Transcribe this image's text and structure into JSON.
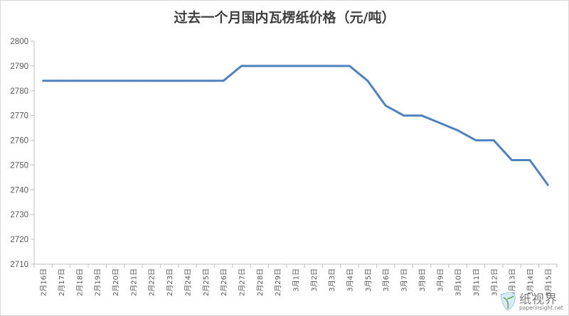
{
  "chart_data": {
    "type": "line",
    "title": "过去一个月国内瓦楞纸价格（元/吨）",
    "xlabel": "",
    "ylabel": "",
    "ylim": [
      2710,
      2800
    ],
    "yticks": [
      2710,
      2720,
      2730,
      2740,
      2750,
      2760,
      2770,
      2780,
      2790,
      2800
    ],
    "grid": false,
    "legend": "none",
    "series_color": "#4f81bd",
    "categories": [
      "2月16日",
      "2月17日",
      "2月18日",
      "2月19日",
      "2月20日",
      "2月21日",
      "2月22日",
      "2月23日",
      "2月24日",
      "2月25日",
      "2月26日",
      "2月27日",
      "2月28日",
      "2月29日",
      "3月1日",
      "3月2日",
      "3月3日",
      "3月4日",
      "3月5日",
      "3月6日",
      "3月7日",
      "3月8日",
      "3月9日",
      "3月10日",
      "3月11日",
      "3月12日",
      "3月13日",
      "3月14日",
      "3月15日"
    ],
    "series": [
      {
        "values": [
          2784,
          2784,
          2784,
          2784,
          2784,
          2784,
          2784,
          2784,
          2784,
          2784,
          2784,
          2790,
          2790,
          2790,
          2790,
          2790,
          2790,
          2790,
          2784,
          2774,
          2770,
          2770,
          2767,
          2764,
          2760,
          2760,
          2752,
          2752,
          2742
        ]
      }
    ]
  },
  "watermark": {
    "text_cn": "纸视界",
    "text_en": "paperinsight.net",
    "icon": "leaf-logo-icon"
  }
}
